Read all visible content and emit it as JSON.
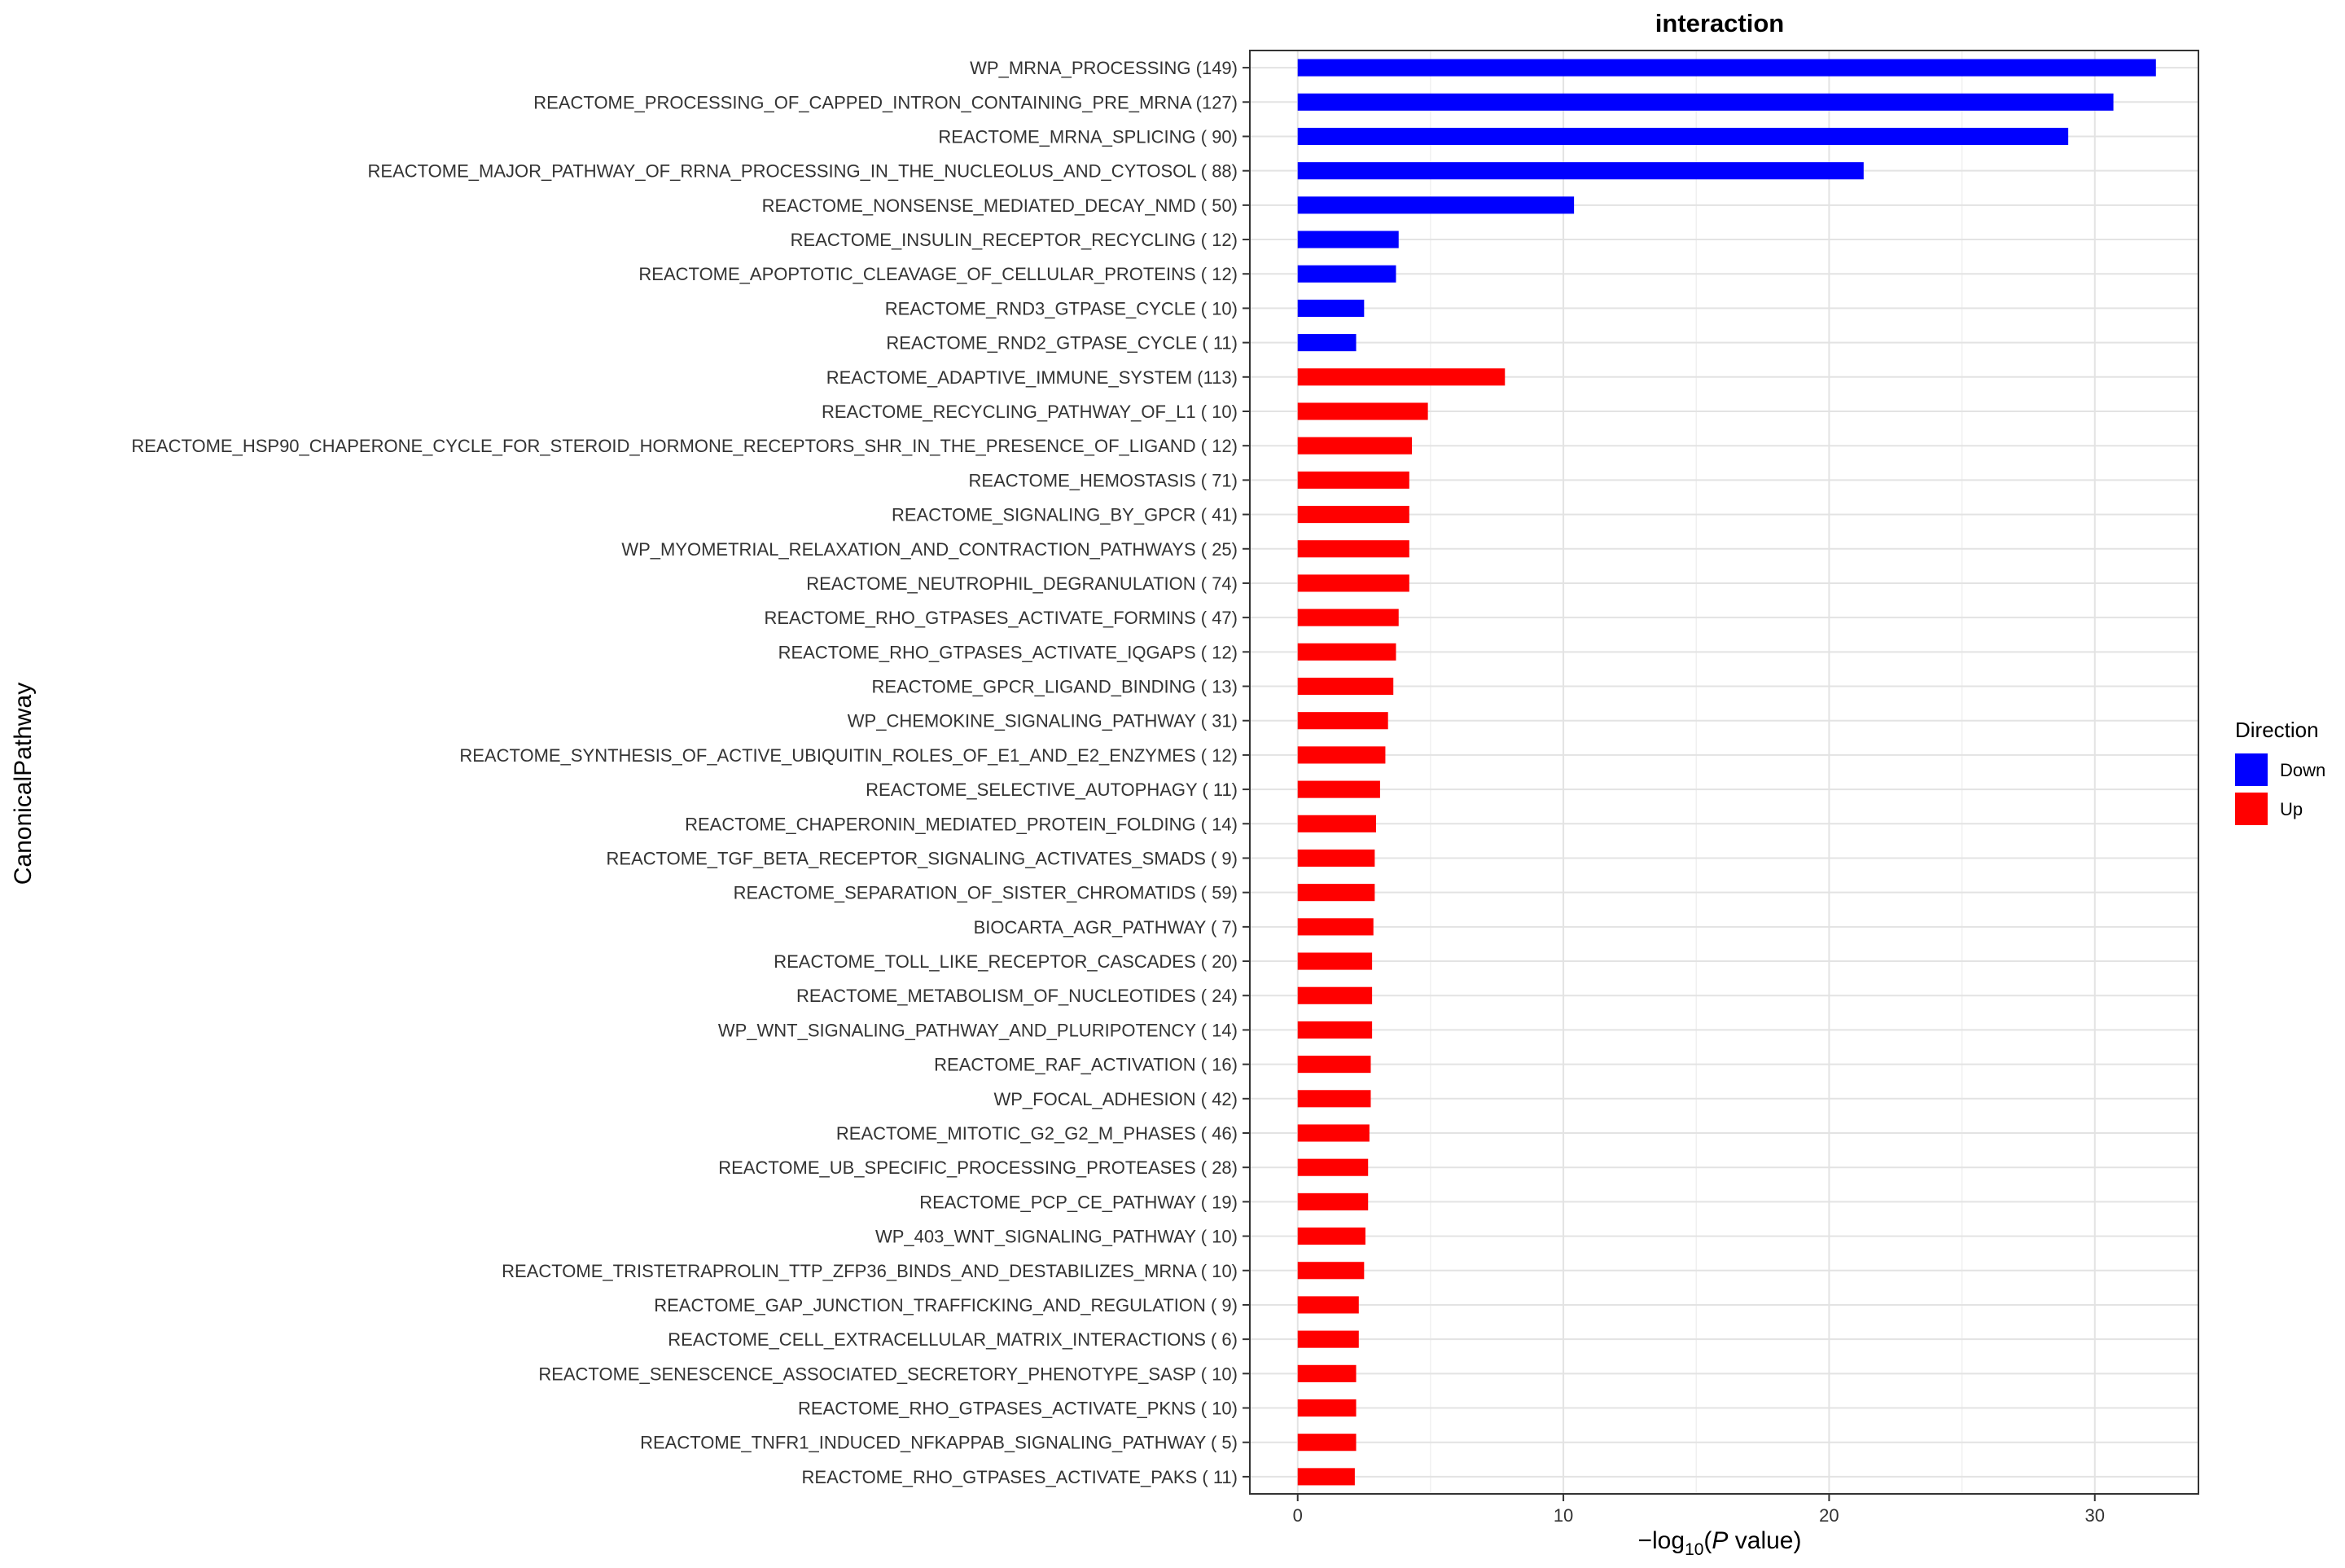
{
  "chart_data": {
    "type": "bar",
    "orientation": "horizontal",
    "title": "interaction",
    "xlabel": "-log10(P value)",
    "ylabel": "CanonicalPathway",
    "xlim": [
      -1.8,
      33.9
    ],
    "xticks": [
      0,
      10,
      20,
      30
    ],
    "grid": true,
    "legend": {
      "title": "Direction",
      "position": "right",
      "entries": [
        {
          "name": "Down",
          "color": "#0000FF"
        },
        {
          "name": "Up",
          "color": "#FF0000"
        }
      ]
    },
    "categories": [
      {
        "label": "WP_MRNA_PROCESSING (149)",
        "value": 32.3,
        "direction": "Down"
      },
      {
        "label": "REACTOME_PROCESSING_OF_CAPPED_INTRON_CONTAINING_PRE_MRNA (127)",
        "value": 30.7,
        "direction": "Down"
      },
      {
        "label": "REACTOME_MRNA_SPLICING ( 90)",
        "value": 29.0,
        "direction": "Down"
      },
      {
        "label": "REACTOME_MAJOR_PATHWAY_OF_RRNA_PROCESSING_IN_THE_NUCLEOLUS_AND_CYTOSOL ( 88)",
        "value": 21.3,
        "direction": "Down"
      },
      {
        "label": "REACTOME_NONSENSE_MEDIATED_DECAY_NMD ( 50)",
        "value": 10.4,
        "direction": "Down"
      },
      {
        "label": "REACTOME_INSULIN_RECEPTOR_RECYCLING ( 12)",
        "value": 3.8,
        "direction": "Down"
      },
      {
        "label": "REACTOME_APOPTOTIC_CLEAVAGE_OF_CELLULAR_PROTEINS ( 12)",
        "value": 3.7,
        "direction": "Down"
      },
      {
        "label": "REACTOME_RND3_GTPASE_CYCLE ( 10)",
        "value": 2.5,
        "direction": "Down"
      },
      {
        "label": "REACTOME_RND2_GTPASE_CYCLE ( 11)",
        "value": 2.2,
        "direction": "Down"
      },
      {
        "label": "REACTOME_ADAPTIVE_IMMUNE_SYSTEM (113)",
        "value": 7.8,
        "direction": "Up"
      },
      {
        "label": "REACTOME_RECYCLING_PATHWAY_OF_L1 ( 10)",
        "value": 4.9,
        "direction": "Up"
      },
      {
        "label": "REACTOME_HSP90_CHAPERONE_CYCLE_FOR_STEROID_HORMONE_RECEPTORS_SHR_IN_THE_PRESENCE_OF_LIGAND ( 12)",
        "value": 4.3,
        "direction": "Up"
      },
      {
        "label": "REACTOME_HEMOSTASIS ( 71)",
        "value": 4.2,
        "direction": "Up"
      },
      {
        "label": "REACTOME_SIGNALING_BY_GPCR ( 41)",
        "value": 4.2,
        "direction": "Up"
      },
      {
        "label": "WP_MYOMETRIAL_RELAXATION_AND_CONTRACTION_PATHWAYS ( 25)",
        "value": 4.2,
        "direction": "Up"
      },
      {
        "label": "REACTOME_NEUTROPHIL_DEGRANULATION ( 74)",
        "value": 4.2,
        "direction": "Up"
      },
      {
        "label": "REACTOME_RHO_GTPASES_ACTIVATE_FORMINS ( 47)",
        "value": 3.8,
        "direction": "Up"
      },
      {
        "label": "REACTOME_RHO_GTPASES_ACTIVATE_IQGAPS ( 12)",
        "value": 3.7,
        "direction": "Up"
      },
      {
        "label": "REACTOME_GPCR_LIGAND_BINDING ( 13)",
        "value": 3.6,
        "direction": "Up"
      },
      {
        "label": "WP_CHEMOKINE_SIGNALING_PATHWAY ( 31)",
        "value": 3.4,
        "direction": "Up"
      },
      {
        "label": "REACTOME_SYNTHESIS_OF_ACTIVE_UBIQUITIN_ROLES_OF_E1_AND_E2_ENZYMES ( 12)",
        "value": 3.3,
        "direction": "Up"
      },
      {
        "label": "REACTOME_SELECTIVE_AUTOPHAGY ( 11)",
        "value": 3.1,
        "direction": "Up"
      },
      {
        "label": "REACTOME_CHAPERONIN_MEDIATED_PROTEIN_FOLDING ( 14)",
        "value": 2.95,
        "direction": "Up"
      },
      {
        "label": "REACTOME_TGF_BETA_RECEPTOR_SIGNALING_ACTIVATES_SMADS (  9)",
        "value": 2.9,
        "direction": "Up"
      },
      {
        "label": "REACTOME_SEPARATION_OF_SISTER_CHROMATIDS ( 59)",
        "value": 2.9,
        "direction": "Up"
      },
      {
        "label": "BIOCARTA_AGR_PATHWAY (  7)",
        "value": 2.85,
        "direction": "Up"
      },
      {
        "label": "REACTOME_TOLL_LIKE_RECEPTOR_CASCADES ( 20)",
        "value": 2.8,
        "direction": "Up"
      },
      {
        "label": "REACTOME_METABOLISM_OF_NUCLEOTIDES ( 24)",
        "value": 2.8,
        "direction": "Up"
      },
      {
        "label": "WP_WNT_SIGNALING_PATHWAY_AND_PLURIPOTENCY ( 14)",
        "value": 2.8,
        "direction": "Up"
      },
      {
        "label": "REACTOME_RAF_ACTIVATION ( 16)",
        "value": 2.75,
        "direction": "Up"
      },
      {
        "label": "WP_FOCAL_ADHESION ( 42)",
        "value": 2.75,
        "direction": "Up"
      },
      {
        "label": "REACTOME_MITOTIC_G2_G2_M_PHASES ( 46)",
        "value": 2.7,
        "direction": "Up"
      },
      {
        "label": "REACTOME_UB_SPECIFIC_PROCESSING_PROTEASES ( 28)",
        "value": 2.65,
        "direction": "Up"
      },
      {
        "label": "REACTOME_PCP_CE_PATHWAY ( 19)",
        "value": 2.65,
        "direction": "Up"
      },
      {
        "label": "WP_403_WNT_SIGNALING_PATHWAY ( 10)",
        "value": 2.55,
        "direction": "Up"
      },
      {
        "label": "REACTOME_TRISTETRAPROLIN_TTP_ZFP36_BINDS_AND_DESTABILIZES_MRNA ( 10)",
        "value": 2.5,
        "direction": "Up"
      },
      {
        "label": "REACTOME_GAP_JUNCTION_TRAFFICKING_AND_REGULATION (  9)",
        "value": 2.3,
        "direction": "Up"
      },
      {
        "label": "REACTOME_CELL_EXTRACELLULAR_MATRIX_INTERACTIONS (  6)",
        "value": 2.3,
        "direction": "Up"
      },
      {
        "label": "REACTOME_SENESCENCE_ASSOCIATED_SECRETORY_PHENOTYPE_SASP ( 10)",
        "value": 2.2,
        "direction": "Up"
      },
      {
        "label": "REACTOME_RHO_GTPASES_ACTIVATE_PKNS ( 10)",
        "value": 2.2,
        "direction": "Up"
      },
      {
        "label": "REACTOME_TNFR1_INDUCED_NFKAPPAB_SIGNALING_PATHWAY (  5)",
        "value": 2.2,
        "direction": "Up"
      },
      {
        "label": "REACTOME_RHO_GTPASES_ACTIVATE_PAKS ( 11)",
        "value": 2.15,
        "direction": "Up"
      }
    ]
  }
}
